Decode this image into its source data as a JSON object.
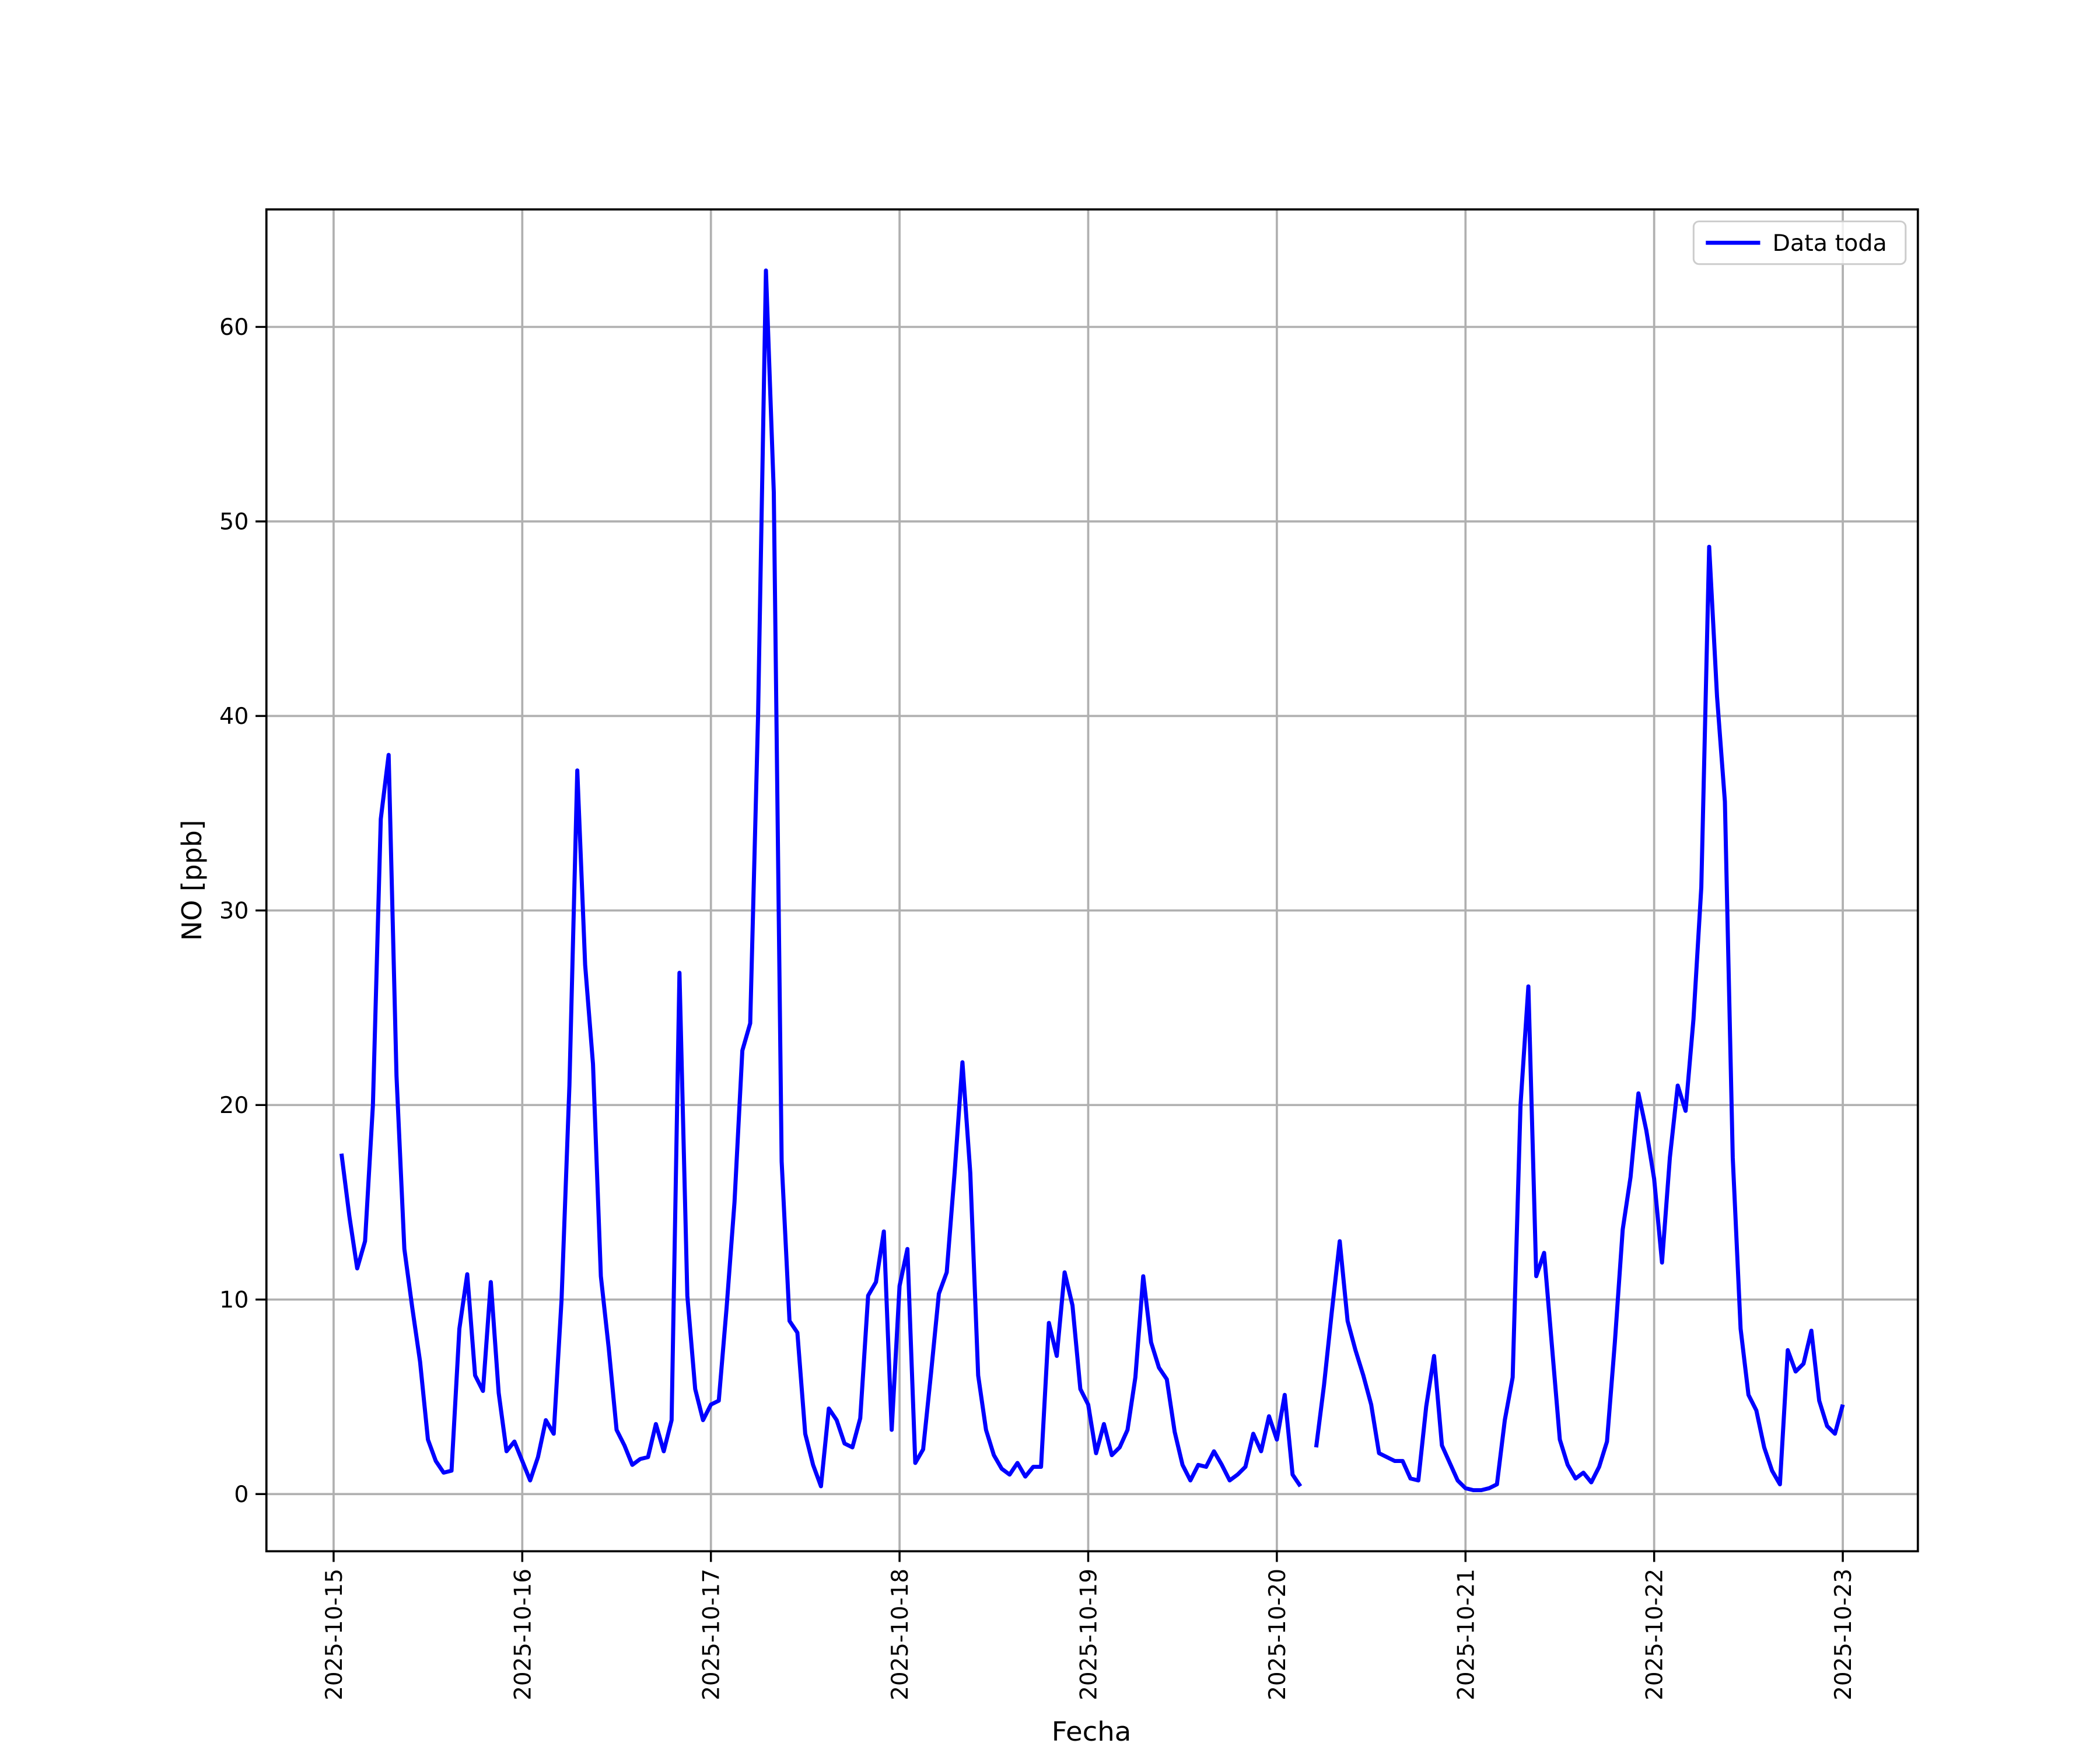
{
  "chart_data": {
    "type": "line",
    "xlabel": "Fecha",
    "ylabel": "NO [ppb]",
    "x": [
      "2025-10-15T01:00",
      "2025-10-15T02:00",
      "2025-10-15T03:00",
      "2025-10-15T04:00",
      "2025-10-15T05:00",
      "2025-10-15T06:00",
      "2025-10-15T07:00",
      "2025-10-15T08:00",
      "2025-10-15T09:00",
      "2025-10-15T10:00",
      "2025-10-15T11:00",
      "2025-10-15T12:00",
      "2025-10-15T13:00",
      "2025-10-15T14:00",
      "2025-10-15T15:00",
      "2025-10-15T16:00",
      "2025-10-15T17:00",
      "2025-10-15T18:00",
      "2025-10-15T19:00",
      "2025-10-15T20:00",
      "2025-10-15T21:00",
      "2025-10-15T22:00",
      "2025-10-15T23:00",
      "2025-10-16T00:00",
      "2025-10-16T01:00",
      "2025-10-16T02:00",
      "2025-10-16T03:00",
      "2025-10-16T04:00",
      "2025-10-16T05:00",
      "2025-10-16T06:00",
      "2025-10-16T07:00",
      "2025-10-16T08:00",
      "2025-10-16T09:00",
      "2025-10-16T10:00",
      "2025-10-16T11:00",
      "2025-10-16T12:00",
      "2025-10-16T13:00",
      "2025-10-16T14:00",
      "2025-10-16T15:00",
      "2025-10-16T16:00",
      "2025-10-16T17:00",
      "2025-10-16T18:00",
      "2025-10-16T19:00",
      "2025-10-16T20:00",
      "2025-10-16T21:00",
      "2025-10-16T22:00",
      "2025-10-16T23:00",
      "2025-10-17T00:00",
      "2025-10-17T01:00",
      "2025-10-17T02:00",
      "2025-10-17T03:00",
      "2025-10-17T04:00",
      "2025-10-17T05:00",
      "2025-10-17T06:00",
      "2025-10-17T07:00",
      "2025-10-17T08:00",
      "2025-10-17T09:00",
      "2025-10-17T10:00",
      "2025-10-17T11:00",
      "2025-10-17T12:00",
      "2025-10-17T13:00",
      "2025-10-17T14:00",
      "2025-10-17T15:00",
      "2025-10-17T16:00",
      "2025-10-17T17:00",
      "2025-10-17T18:00",
      "2025-10-17T19:00",
      "2025-10-17T20:00",
      "2025-10-17T21:00",
      "2025-10-17T22:00",
      "2025-10-17T23:00",
      "2025-10-18T00:00",
      "2025-10-18T01:00",
      "2025-10-18T02:00",
      "2025-10-18T03:00",
      "2025-10-18T04:00",
      "2025-10-18T05:00",
      "2025-10-18T06:00",
      "2025-10-18T07:00",
      "2025-10-18T08:00",
      "2025-10-18T09:00",
      "2025-10-18T10:00",
      "2025-10-18T11:00",
      "2025-10-18T12:00",
      "2025-10-18T13:00",
      "2025-10-18T14:00",
      "2025-10-18T15:00",
      "2025-10-18T16:00",
      "2025-10-18T17:00",
      "2025-10-18T18:00",
      "2025-10-18T19:00",
      "2025-10-18T20:00",
      "2025-10-18T21:00",
      "2025-10-18T22:00",
      "2025-10-18T23:00",
      "2025-10-19T00:00",
      "2025-10-19T01:00",
      "2025-10-19T02:00",
      "2025-10-19T03:00",
      "2025-10-19T04:00",
      "2025-10-19T05:00",
      "2025-10-19T06:00",
      "2025-10-19T07:00",
      "2025-10-19T08:00",
      "2025-10-19T09:00",
      "2025-10-19T10:00",
      "2025-10-19T11:00",
      "2025-10-19T12:00",
      "2025-10-19T13:00",
      "2025-10-19T14:00",
      "2025-10-19T15:00",
      "2025-10-19T16:00",
      "2025-10-19T17:00",
      "2025-10-19T18:00",
      "2025-10-19T19:00",
      "2025-10-19T20:00",
      "2025-10-19T21:00",
      "2025-10-19T22:00",
      "2025-10-19T23:00",
      "2025-10-20T00:00",
      "2025-10-20T01:00",
      "2025-10-20T02:00",
      "2025-10-20T03:00",
      "2025-10-20T04:00",
      "2025-10-20T05:00",
      "2025-10-20T06:00",
      "2025-10-20T07:00",
      "2025-10-20T08:00",
      "2025-10-20T09:00",
      "2025-10-20T10:00",
      "2025-10-20T11:00",
      "2025-10-20T12:00",
      "2025-10-20T13:00",
      "2025-10-20T14:00",
      "2025-10-20T15:00",
      "2025-10-20T16:00",
      "2025-10-20T17:00",
      "2025-10-20T18:00",
      "2025-10-20T19:00",
      "2025-10-20T20:00",
      "2025-10-20T21:00",
      "2025-10-20T22:00",
      "2025-10-20T23:00",
      "2025-10-21T00:00",
      "2025-10-21T01:00",
      "2025-10-21T02:00",
      "2025-10-21T03:00",
      "2025-10-21T04:00",
      "2025-10-21T05:00",
      "2025-10-21T06:00",
      "2025-10-21T07:00",
      "2025-10-21T08:00",
      "2025-10-21T09:00",
      "2025-10-21T10:00",
      "2025-10-21T11:00",
      "2025-10-21T12:00",
      "2025-10-21T13:00",
      "2025-10-21T14:00",
      "2025-10-21T15:00",
      "2025-10-21T16:00",
      "2025-10-21T17:00",
      "2025-10-21T18:00",
      "2025-10-21T19:00",
      "2025-10-21T20:00",
      "2025-10-21T21:00",
      "2025-10-21T22:00",
      "2025-10-21T23:00",
      "2025-10-22T00:00",
      "2025-10-22T01:00",
      "2025-10-22T02:00",
      "2025-10-22T03:00",
      "2025-10-22T04:00",
      "2025-10-22T05:00",
      "2025-10-22T06:00",
      "2025-10-22T07:00",
      "2025-10-22T08:00",
      "2025-10-22T09:00",
      "2025-10-22T10:00",
      "2025-10-22T11:00",
      "2025-10-22T12:00",
      "2025-10-22T13:00",
      "2025-10-22T14:00",
      "2025-10-22T15:00",
      "2025-10-22T16:00",
      "2025-10-22T17:00",
      "2025-10-22T18:00",
      "2025-10-22T19:00",
      "2025-10-22T20:00",
      "2025-10-22T21:00",
      "2025-10-22T22:00",
      "2025-10-22T23:00",
      "2025-10-23T00:00"
    ],
    "series": [
      {
        "name": "Data toda",
        "color": "#0000ff",
        "values": [
          17.5,
          14.3,
          11.6,
          13.0,
          20.0,
          34.7,
          38.0,
          21.5,
          12.6,
          9.6,
          6.8,
          2.8,
          1.7,
          1.1,
          1.2,
          8.5,
          11.3,
          6.1,
          5.3,
          10.9,
          5.2,
          2.2,
          2.7,
          1.7,
          0.7,
          1.9,
          3.8,
          3.1,
          10.0,
          21.0,
          37.2,
          27.2,
          22.1,
          11.2,
          7.5,
          3.3,
          2.5,
          1.5,
          1.8,
          1.9,
          3.6,
          2.2,
          3.8,
          26.8,
          10.2,
          5.4,
          3.8,
          4.6,
          4.8,
          9.6,
          15.0,
          22.8,
          24.2,
          40.0,
          62.9,
          51.5,
          17.1,
          8.9,
          8.3,
          3.1,
          1.5,
          0.4,
          4.4,
          3.8,
          2.6,
          2.4,
          3.9,
          10.2,
          10.9,
          13.5,
          3.3,
          10.7,
          12.6,
          1.6,
          2.3,
          6.2,
          10.3,
          11.4,
          16.5,
          22.2,
          16.5,
          6.1,
          3.3,
          2.0,
          1.3,
          1.0,
          1.6,
          0.9,
          1.4,
          1.4,
          8.8,
          7.1,
          11.4,
          9.7,
          5.4,
          4.6,
          2.1,
          3.6,
          2.0,
          2.4,
          3.3,
          6.0,
          11.2,
          7.8,
          6.5,
          5.9,
          3.2,
          1.5,
          0.7,
          1.5,
          1.4,
          2.2,
          1.5,
          0.7,
          1.0,
          1.4,
          3.1,
          2.2,
          4.0,
          2.8,
          5.1,
          1.0,
          0.4,
          null,
          2.4,
          5.6,
          9.4,
          13.0,
          8.9,
          7.4,
          6.1,
          4.6,
          2.1,
          1.9,
          1.7,
          1.7,
          0.8,
          0.7,
          4.5,
          7.1,
          2.5,
          1.6,
          0.7,
          0.3,
          0.2,
          0.2,
          0.3,
          0.5,
          3.8,
          6.0,
          20.0,
          26.1,
          11.2,
          12.4,
          7.6,
          2.8,
          1.5,
          0.8,
          1.1,
          0.6,
          1.4,
          2.7,
          7.8,
          13.6,
          16.3,
          20.6,
          18.7,
          16.2,
          11.9,
          17.3,
          21.0,
          19.7,
          24.4,
          31.2,
          48.7,
          41.0,
          35.6,
          17.3,
          8.5,
          5.1,
          4.3,
          2.4,
          1.2,
          0.5,
          7.4,
          6.3,
          6.7,
          8.4,
          4.8,
          3.5,
          3.1,
          4.6
        ]
      }
    ],
    "xlim": [
      "2025-10-14T15:27",
      "2025-10-23T09:33"
    ],
    "xticks": [
      "2025-10-15",
      "2025-10-16",
      "2025-10-17",
      "2025-10-18",
      "2025-10-19",
      "2025-10-20",
      "2025-10-21",
      "2025-10-22",
      "2025-10-23"
    ],
    "ylim": [
      -2.94,
      66.04
    ],
    "yticks": [
      0,
      10,
      20,
      30,
      40,
      50,
      60
    ],
    "grid": true,
    "legend": "upper right"
  }
}
